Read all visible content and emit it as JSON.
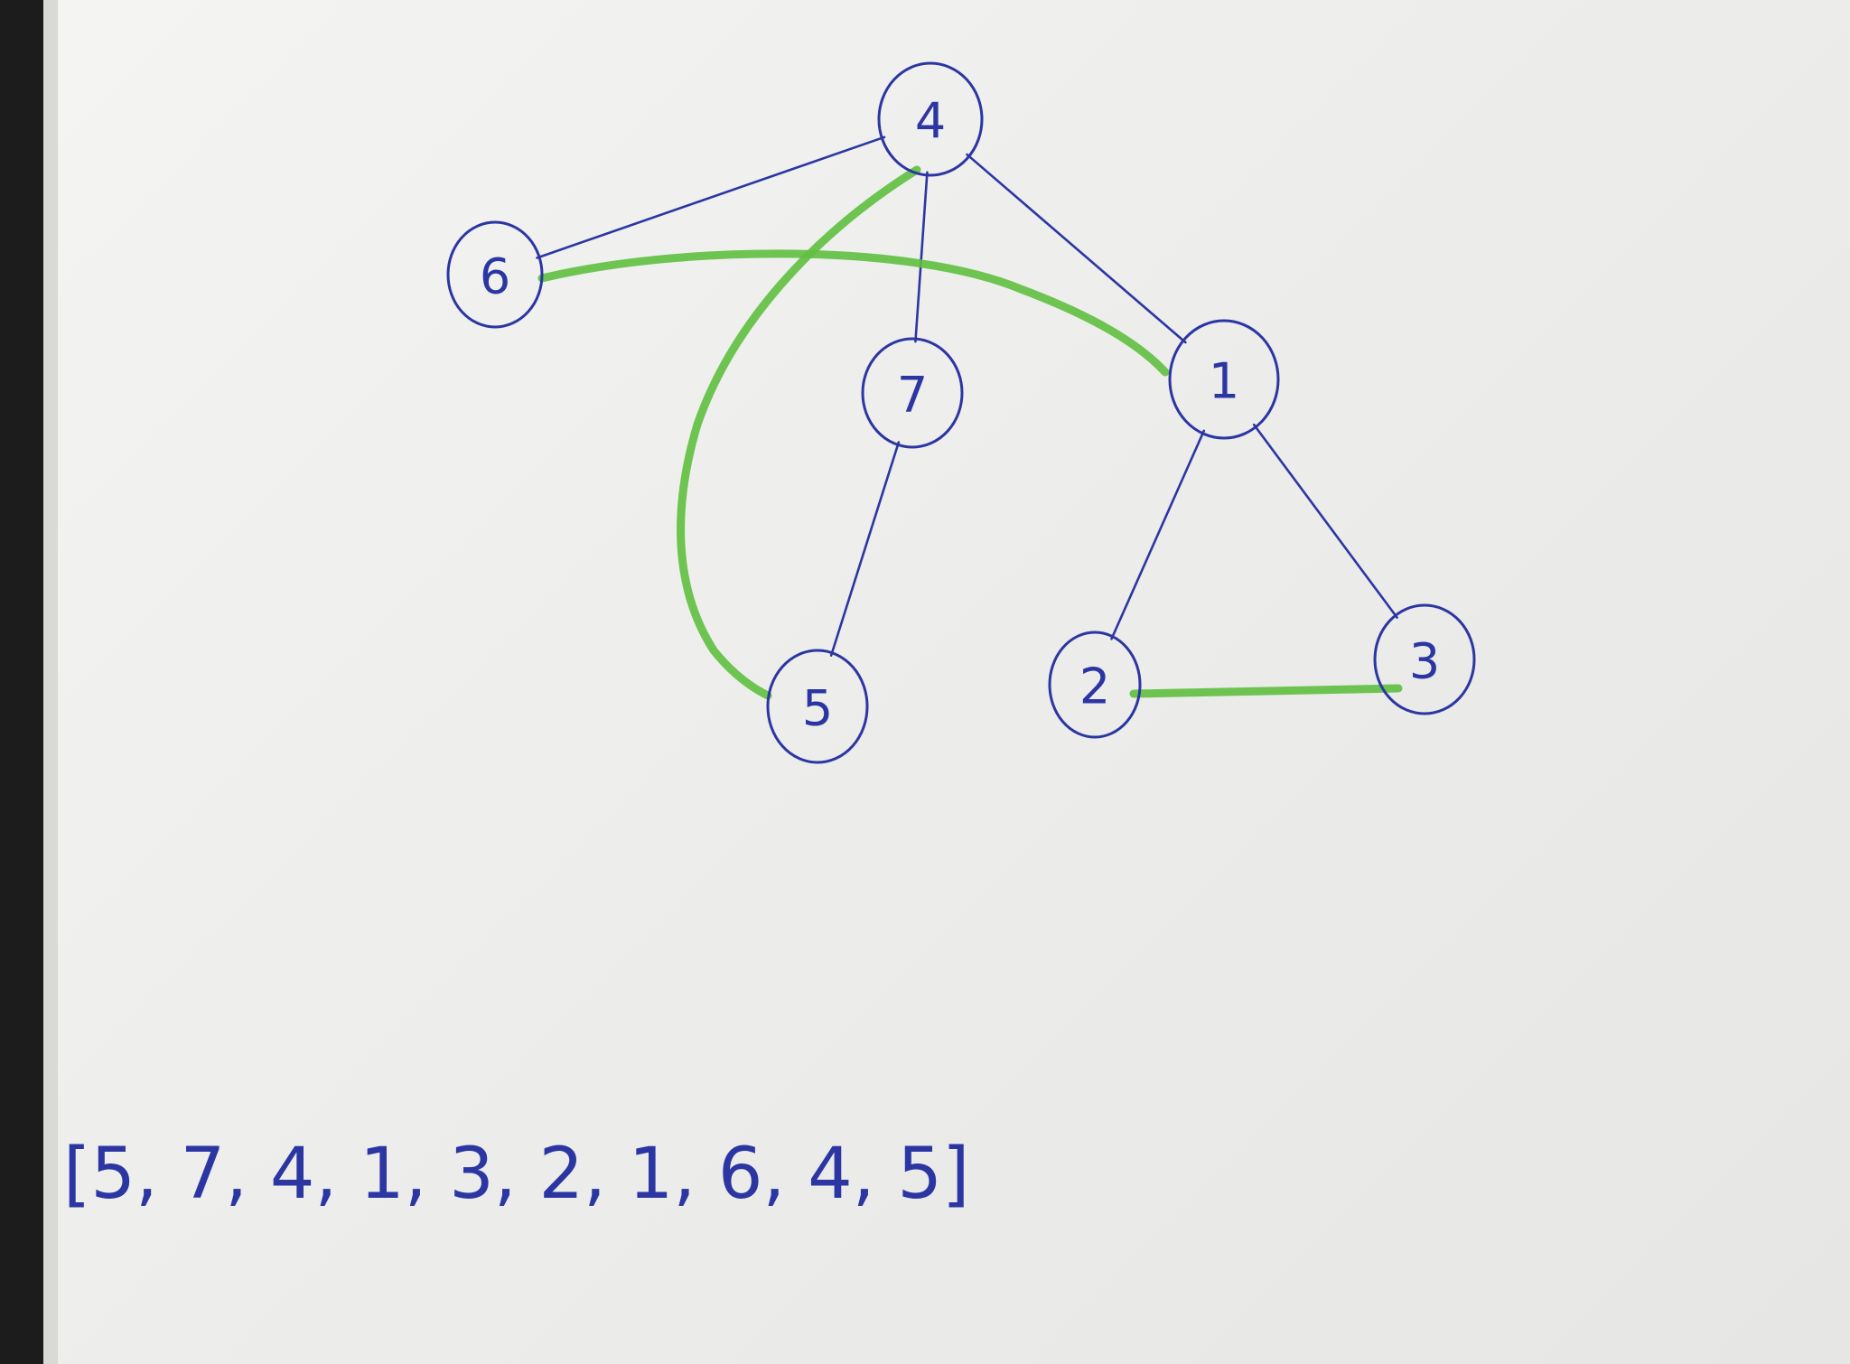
{
  "graph": {
    "nodes": [
      "4",
      "6",
      "7",
      "1",
      "5",
      "2",
      "3"
    ],
    "edges": [
      {
        "from": "4",
        "to": "6"
      },
      {
        "from": "4",
        "to": "7"
      },
      {
        "from": "4",
        "to": "1"
      },
      {
        "from": "7",
        "to": "5"
      },
      {
        "from": "1",
        "to": "2"
      },
      {
        "from": "1",
        "to": "3"
      }
    ],
    "highlighted_edges": [
      {
        "from": "6",
        "to": "1"
      },
      {
        "from": "4",
        "to": "5"
      },
      {
        "from": "2",
        "to": "3"
      }
    ],
    "ink_color": "#2b36a3",
    "highlight_color": "#5fbf3f"
  },
  "sequence": {
    "items": [
      "5",
      "7",
      "4",
      "1",
      "3",
      "2",
      "1",
      "6",
      "4",
      "5"
    ],
    "text": "[5, 7, 4, 1, 3, 2, 1, 6, 4, 5]"
  }
}
